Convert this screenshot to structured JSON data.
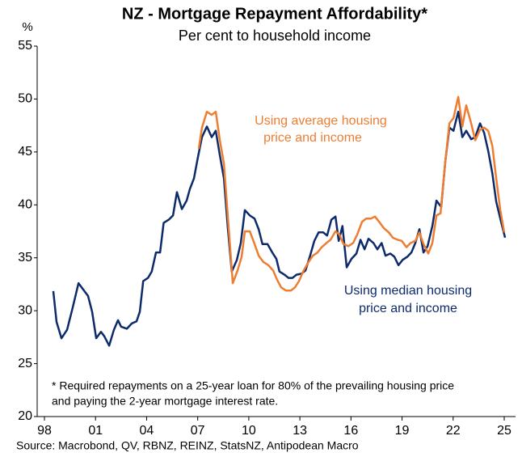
{
  "chart_data": {
    "type": "line",
    "title": "NZ - Mortgage Repayment Affordability*",
    "subtitle": "Per cent to household income",
    "y_unit": "%",
    "xlim": [
      1998,
      2025
    ],
    "xticks": [
      {
        "value": 1998,
        "label": "98"
      },
      {
        "value": 2001,
        "label": "01"
      },
      {
        "value": 2004,
        "label": "04"
      },
      {
        "value": 2007,
        "label": "07"
      },
      {
        "value": 2010,
        "label": "10"
      },
      {
        "value": 2013,
        "label": "13"
      },
      {
        "value": 2016,
        "label": "16"
      },
      {
        "value": 2019,
        "label": "19"
      },
      {
        "value": 2022,
        "label": "22"
      },
      {
        "value": 2025,
        "label": "25"
      }
    ],
    "ylim": [
      20,
      55
    ],
    "yticks": [
      20,
      25,
      30,
      35,
      40,
      45,
      50,
      55
    ],
    "grid": false,
    "series": [
      {
        "name": "Using median housing price and income",
        "color": "#0d2a6b",
        "x": [
          1998.52,
          1998.71,
          1999.0,
          1999.33,
          1999.66,
          2000.0,
          2000.28,
          2000.56,
          2000.8,
          2001.04,
          2001.32,
          2001.51,
          2001.8,
          2002.08,
          2002.32,
          2002.5,
          2002.84,
          2003.13,
          2003.41,
          2003.6,
          2003.8,
          2004.08,
          2004.3,
          2004.55,
          2004.79,
          2005.0,
          2005.3,
          2005.55,
          2005.78,
          2006.07,
          2006.35,
          2006.54,
          2006.78,
          2007.0,
          2007.25,
          2007.54,
          2007.82,
          2008.06,
          2008.3,
          2008.54,
          2008.77,
          2009.0,
          2009.3,
          2009.53,
          2009.77,
          2010.06,
          2010.34,
          2010.58,
          2010.8,
          2011.1,
          2011.38,
          2011.62,
          2011.8,
          2012.1,
          2012.33,
          2012.57,
          2012.8,
          2013.1,
          2013.33,
          2013.6,
          2013.85,
          2014.1,
          2014.37,
          2014.6,
          2014.85,
          2015.09,
          2015.28,
          2015.5,
          2015.75,
          2016.03,
          2016.32,
          2016.56,
          2016.8,
          2017.03,
          2017.32,
          2017.55,
          2017.8,
          2018.03,
          2018.31,
          2018.55,
          2018.79,
          2019.03,
          2019.31,
          2019.55,
          2019.78,
          2020.02,
          2020.26,
          2020.5,
          2020.78,
          2021.02,
          2021.3,
          2021.54,
          2021.78,
          2022.02,
          2022.3,
          2022.54,
          2022.77,
          2023.06,
          2023.3,
          2023.58,
          2023.82,
          2024.06,
          2024.3,
          2024.53,
          2024.77,
          2025.05
        ],
        "values": [
          31.85,
          28.95,
          27.4,
          28.2,
          30.3,
          32.6,
          32.0,
          31.4,
          29.9,
          27.4,
          28.0,
          27.6,
          26.7,
          28.2,
          29.1,
          28.5,
          28.3,
          28.8,
          29.0,
          29.9,
          32.8,
          33.1,
          33.7,
          35.5,
          35.5,
          38.3,
          38.6,
          39.0,
          41.2,
          39.6,
          40.4,
          41.5,
          42.5,
          44.4,
          46.4,
          47.4,
          46.4,
          47.0,
          44.7,
          42.5,
          37.8,
          33.7,
          34.8,
          36.4,
          39.5,
          39.0,
          38.7,
          37.7,
          36.3,
          36.3,
          35.5,
          34.9,
          33.7,
          33.4,
          33.1,
          33.1,
          33.4,
          33.5,
          33.8,
          35.2,
          36.6,
          37.4,
          37.4,
          37.1,
          38.6,
          38.9,
          36.6,
          38.0,
          34.1,
          34.9,
          35.4,
          36.7,
          35.8,
          36.8,
          36.4,
          35.8,
          36.4,
          35.2,
          35.4,
          35.1,
          34.3,
          34.8,
          35.1,
          35.5,
          36.4,
          37.7,
          35.5,
          36.1,
          38.0,
          40.4,
          39.8,
          44.1,
          47.3,
          47.0,
          48.8,
          46.4,
          47.0,
          46.2,
          46.4,
          47.7,
          46.8,
          45.1,
          43.0,
          40.3,
          38.7,
          36.9
        ]
      },
      {
        "name": "Using average housing price and income",
        "color": "#ed7d31",
        "x": [
          2007.06,
          2007.25,
          2007.54,
          2007.82,
          2008.06,
          2008.3,
          2008.54,
          2008.77,
          2009.06,
          2009.34,
          2009.58,
          2009.77,
          2010.06,
          2010.34,
          2010.58,
          2010.86,
          2011.15,
          2011.43,
          2011.67,
          2011.9,
          2012.19,
          2012.47,
          2012.71,
          2012.95,
          2013.19,
          2013.47,
          2013.76,
          2014.04,
          2014.28,
          2014.56,
          2014.8,
          2015.09,
          2015.32,
          2015.56,
          2015.85,
          2016.13,
          2016.37,
          2016.65,
          2016.89,
          2017.17,
          2017.41,
          2017.7,
          2017.93,
          2018.22,
          2018.46,
          2018.74,
          2018.98,
          2019.26,
          2019.5,
          2019.78,
          2020.02,
          2020.26,
          2020.54,
          2020.78,
          2021.02,
          2021.26,
          2021.54,
          2021.78,
          2022.02,
          2022.3,
          2022.54,
          2022.77,
          2023.06,
          2023.3,
          2023.58,
          2023.82,
          2024.06,
          2024.3,
          2024.53,
          2024.77,
          2025.0
        ],
        "values": [
          45.3,
          47.3,
          48.8,
          48.5,
          48.8,
          46.1,
          43.9,
          38.9,
          32.6,
          33.8,
          35.1,
          37.5,
          37.5,
          36.3,
          35.2,
          34.6,
          34.3,
          33.8,
          32.9,
          32.2,
          31.9,
          31.9,
          32.2,
          32.8,
          33.7,
          34.5,
          35.2,
          35.5,
          36.0,
          36.4,
          36.7,
          37.5,
          37.2,
          36.3,
          36.1,
          36.4,
          37.2,
          38.4,
          38.7,
          38.7,
          38.9,
          38.3,
          37.8,
          37.4,
          36.9,
          36.7,
          36.6,
          36.0,
          36.4,
          36.6,
          37.4,
          36.3,
          35.4,
          36.4,
          39.0,
          39.2,
          44.1,
          47.7,
          48.2,
          50.2,
          47.4,
          49.4,
          47.7,
          46.1,
          47.1,
          47.3,
          47.0,
          45.6,
          42.5,
          39.5,
          37.4
        ]
      }
    ],
    "annotations": [
      {
        "series": 1,
        "lines": [
          "Using average housing",
          "price and income"
        ]
      },
      {
        "series": 0,
        "lines": [
          "Using median housing",
          "price and income"
        ]
      }
    ],
    "footnote": [
      "* Required repayments on a 25-year loan for 80% of the prevailing housing price",
      "and paying the 2-year mortgage interest rate."
    ],
    "source": "Source: Macrobond, QV, RBNZ, REINZ, StatsNZ, Antipodean Macro"
  }
}
